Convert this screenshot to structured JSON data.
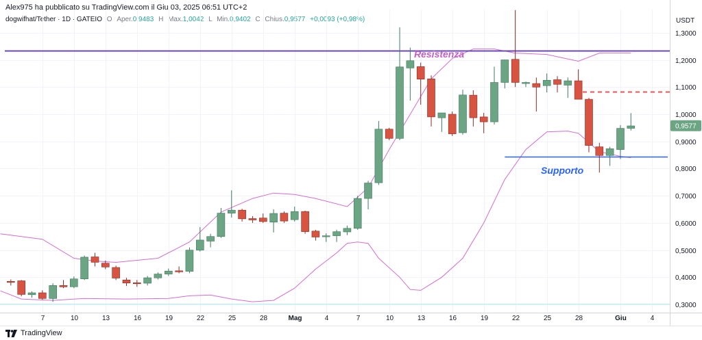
{
  "header": {
    "publisher": "Alex975 ha pubblicato su TradingView.com il Giu 03, 2025 06:51 UTC+2",
    "symbol": "dogwifhat/Tether · 1D · GATEIO",
    "open_label": "O",
    "open_text": "Aper.",
    "open_value": "0,9483",
    "high_label": "H",
    "high_text": "Max.",
    "high_value": "1,0042",
    "low_label": "L",
    "low_text": "Min.",
    "low_value": "0,9402",
    "close_label": "C",
    "close_text": "Chius.",
    "close_value": "0,9577",
    "change": "+0,0093 (+0,98%)"
  },
  "footer": {
    "brand": "TradingView",
    "logo_icon": "tradingview-logo-icon"
  },
  "colors": {
    "up": "#6ba583",
    "down": "#d75442",
    "band": "#d36cd0",
    "resistance": "#6a48b7",
    "support": "#2962ff",
    "last_price": "#6ba583",
    "dash": "#ef5350",
    "grid": "#f0f3fa"
  },
  "chart_data": {
    "type": "candlestick",
    "currency": "USDT",
    "ylim": [
      0.275,
      1.385
    ],
    "y_ticks": [
      "0,3000",
      "0,4000",
      "0,5000",
      "0,6000",
      "0,7000",
      "0,8000",
      "0,9000",
      "1,0000",
      "1,1000",
      "1,2000",
      "1,3000"
    ],
    "y_tick_values": [
      0.3,
      0.4,
      0.5,
      0.6,
      0.7,
      0.8,
      0.9,
      1.0,
      1.1,
      1.2,
      1.3
    ],
    "x_ticks": [
      "7",
      "10",
      "13",
      "16",
      "19",
      "22",
      "25",
      "28",
      "Mag",
      "4",
      "7",
      "10",
      "13",
      "16",
      "19",
      "22",
      "25",
      "28",
      "Giu",
      "4"
    ],
    "x_tick_index": [
      4,
      7,
      10,
      13,
      16,
      19,
      22,
      25,
      28,
      31,
      34,
      37,
      40,
      43,
      46,
      49,
      52,
      55,
      59,
      62
    ],
    "last_price_label": "0,9577",
    "last_price": 0.9577,
    "resistance": {
      "label": "Resistenza",
      "value": 1.233
    },
    "support": {
      "label": "Supporto",
      "value": 0.843,
      "from_index": 48
    },
    "pending_level": 1.082,
    "candles": [
      {
        "i": 1,
        "o": 0.385,
        "h": 0.392,
        "l": 0.37,
        "c": 0.384
      },
      {
        "i": 2,
        "o": 0.387,
        "h": 0.39,
        "l": 0.33,
        "c": 0.337
      },
      {
        "i": 3,
        "o": 0.336,
        "h": 0.348,
        "l": 0.325,
        "c": 0.343
      },
      {
        "i": 4,
        "o": 0.343,
        "h": 0.352,
        "l": 0.318,
        "c": 0.322
      },
      {
        "i": 5,
        "o": 0.322,
        "h": 0.378,
        "l": 0.31,
        "c": 0.37
      },
      {
        "i": 6,
        "o": 0.37,
        "h": 0.39,
        "l": 0.36,
        "c": 0.365
      },
      {
        "i": 7,
        "o": 0.365,
        "h": 0.403,
        "l": 0.36,
        "c": 0.394
      },
      {
        "i": 8,
        "o": 0.394,
        "h": 0.48,
        "l": 0.39,
        "c": 0.474
      },
      {
        "i": 9,
        "o": 0.475,
        "h": 0.49,
        "l": 0.44,
        "c": 0.455
      },
      {
        "i": 10,
        "o": 0.452,
        "h": 0.462,
        "l": 0.43,
        "c": 0.438
      },
      {
        "i": 11,
        "o": 0.436,
        "h": 0.443,
        "l": 0.39,
        "c": 0.397
      },
      {
        "i": 12,
        "o": 0.39,
        "h": 0.398,
        "l": 0.368,
        "c": 0.379
      },
      {
        "i": 13,
        "o": 0.38,
        "h": 0.39,
        "l": 0.365,
        "c": 0.378
      },
      {
        "i": 14,
        "o": 0.378,
        "h": 0.405,
        "l": 0.37,
        "c": 0.398
      },
      {
        "i": 15,
        "o": 0.398,
        "h": 0.418,
        "l": 0.392,
        "c": 0.412
      },
      {
        "i": 16,
        "o": 0.412,
        "h": 0.432,
        "l": 0.405,
        "c": 0.423
      },
      {
        "i": 17,
        "o": 0.424,
        "h": 0.44,
        "l": 0.415,
        "c": 0.42
      },
      {
        "i": 18,
        "o": 0.422,
        "h": 0.51,
        "l": 0.415,
        "c": 0.5
      },
      {
        "i": 19,
        "o": 0.5,
        "h": 0.585,
        "l": 0.495,
        "c": 0.537
      },
      {
        "i": 20,
        "o": 0.533,
        "h": 0.56,
        "l": 0.51,
        "c": 0.55
      },
      {
        "i": 21,
        "o": 0.55,
        "h": 0.655,
        "l": 0.545,
        "c": 0.636
      },
      {
        "i": 22,
        "o": 0.636,
        "h": 0.72,
        "l": 0.62,
        "c": 0.647
      },
      {
        "i": 23,
        "o": 0.647,
        "h": 0.652,
        "l": 0.605,
        "c": 0.615
      },
      {
        "i": 24,
        "o": 0.616,
        "h": 0.625,
        "l": 0.6,
        "c": 0.611
      },
      {
        "i": 25,
        "o": 0.618,
        "h": 0.635,
        "l": 0.6,
        "c": 0.605
      },
      {
        "i": 26,
        "o": 0.603,
        "h": 0.65,
        "l": 0.565,
        "c": 0.635
      },
      {
        "i": 27,
        "o": 0.636,
        "h": 0.643,
        "l": 0.6,
        "c": 0.607
      },
      {
        "i": 28,
        "o": 0.612,
        "h": 0.66,
        "l": 0.605,
        "c": 0.642
      },
      {
        "i": 29,
        "o": 0.642,
        "h": 0.645,
        "l": 0.56,
        "c": 0.568
      },
      {
        "i": 30,
        "o": 0.57,
        "h": 0.575,
        "l": 0.535,
        "c": 0.548
      },
      {
        "i": 31,
        "o": 0.55,
        "h": 0.562,
        "l": 0.53,
        "c": 0.553
      },
      {
        "i": 32,
        "o": 0.553,
        "h": 0.575,
        "l": 0.53,
        "c": 0.568
      },
      {
        "i": 33,
        "o": 0.567,
        "h": 0.59,
        "l": 0.555,
        "c": 0.58
      },
      {
        "i": 34,
        "o": 0.58,
        "h": 0.7,
        "l": 0.575,
        "c": 0.69
      },
      {
        "i": 35,
        "o": 0.69,
        "h": 0.755,
        "l": 0.65,
        "c": 0.747
      },
      {
        "i": 36,
        "o": 0.748,
        "h": 0.975,
        "l": 0.74,
        "c": 0.945
      },
      {
        "i": 37,
        "o": 0.945,
        "h": 0.95,
        "l": 0.905,
        "c": 0.911
      },
      {
        "i": 38,
        "o": 0.911,
        "h": 1.32,
        "l": 0.905,
        "c": 1.174
      },
      {
        "i": 39,
        "o": 1.17,
        "h": 1.245,
        "l": 1.05,
        "c": 1.197
      },
      {
        "i": 40,
        "o": 1.175,
        "h": 1.19,
        "l": 1.035,
        "c": 1.129
      },
      {
        "i": 41,
        "o": 1.13,
        "h": 1.143,
        "l": 0.955,
        "c": 0.99
      },
      {
        "i": 42,
        "o": 0.987,
        "h": 1.005,
        "l": 0.935,
        "c": 1.005
      },
      {
        "i": 43,
        "o": 1.0,
        "h": 1.01,
        "l": 0.92,
        "c": 0.928
      },
      {
        "i": 44,
        "o": 0.932,
        "h": 1.09,
        "l": 0.925,
        "c": 1.071
      },
      {
        "i": 45,
        "o": 1.07,
        "h": 1.088,
        "l": 0.955,
        "c": 0.987
      },
      {
        "i": 46,
        "o": 0.99,
        "h": 1.005,
        "l": 0.93,
        "c": 0.972
      },
      {
        "i": 47,
        "o": 0.972,
        "h": 1.175,
        "l": 0.962,
        "c": 1.117
      },
      {
        "i": 48,
        "o": 1.117,
        "h": 1.2,
        "l": 1.095,
        "c": 1.2
      },
      {
        "i": 49,
        "o": 1.202,
        "h": 1.383,
        "l": 1.1,
        "c": 1.117
      },
      {
        "i": 50,
        "o": 1.113,
        "h": 1.12,
        "l": 1.1,
        "c": 1.117
      },
      {
        "i": 51,
        "o": 1.113,
        "h": 1.135,
        "l": 1.01,
        "c": 1.1
      },
      {
        "i": 52,
        "o": 1.105,
        "h": 1.15,
        "l": 1.08,
        "c": 1.125
      },
      {
        "i": 53,
        "o": 1.127,
        "h": 1.14,
        "l": 1.08,
        "c": 1.11
      },
      {
        "i": 54,
        "o": 1.107,
        "h": 1.135,
        "l": 1.06,
        "c": 1.123
      },
      {
        "i": 55,
        "o": 1.123,
        "h": 1.165,
        "l": 1.055,
        "c": 1.055
      },
      {
        "i": 56,
        "o": 1.055,
        "h": 1.06,
        "l": 0.86,
        "c": 0.885
      },
      {
        "i": 57,
        "o": 0.88,
        "h": 0.895,
        "l": 0.785,
        "c": 0.848
      },
      {
        "i": 58,
        "o": 0.848,
        "h": 0.88,
        "l": 0.81,
        "c": 0.873
      },
      {
        "i": 59,
        "o": 0.87,
        "h": 0.96,
        "l": 0.835,
        "c": 0.948
      },
      {
        "i": 60,
        "o": 0.948,
        "h": 1.004,
        "l": 0.94,
        "c": 0.957
      }
    ],
    "upper_band": [
      [
        0,
        0.56
      ],
      [
        4,
        0.54
      ],
      [
        7,
        0.47
      ],
      [
        9,
        0.46
      ],
      [
        11,
        0.455
      ],
      [
        15,
        0.47
      ],
      [
        18,
        0.53
      ],
      [
        21,
        0.64
      ],
      [
        24,
        0.69
      ],
      [
        26,
        0.71
      ],
      [
        28,
        0.705
      ],
      [
        30,
        0.69
      ],
      [
        33,
        0.66
      ],
      [
        35,
        0.73
      ],
      [
        37,
        0.87
      ],
      [
        39,
        1.0
      ],
      [
        41,
        1.13
      ],
      [
        43,
        1.205
      ],
      [
        45,
        1.24
      ],
      [
        47,
        1.24
      ],
      [
        49,
        1.225
      ],
      [
        52,
        1.22
      ],
      [
        55,
        1.195
      ],
      [
        57,
        1.225
      ],
      [
        60,
        1.225
      ]
    ],
    "lower_band": [
      [
        0,
        0.35
      ],
      [
        2,
        0.32
      ],
      [
        5,
        0.315
      ],
      [
        8,
        0.322
      ],
      [
        12,
        0.32
      ],
      [
        16,
        0.322
      ],
      [
        18,
        0.332
      ],
      [
        20,
        0.335
      ],
      [
        22,
        0.32
      ],
      [
        24,
        0.31
      ],
      [
        26,
        0.315
      ],
      [
        28,
        0.36
      ],
      [
        30,
        0.43
      ],
      [
        32,
        0.49
      ],
      [
        33,
        0.525
      ],
      [
        34,
        0.53
      ],
      [
        35,
        0.525
      ],
      [
        36,
        0.47
      ],
      [
        38,
        0.4
      ],
      [
        39,
        0.355
      ],
      [
        40,
        0.352
      ],
      [
        42,
        0.4
      ],
      [
        44,
        0.47
      ],
      [
        46,
        0.6
      ],
      [
        48,
        0.76
      ],
      [
        50,
        0.87
      ],
      [
        52,
        0.935
      ],
      [
        54,
        0.938
      ],
      [
        55,
        0.93
      ],
      [
        57,
        0.862
      ],
      [
        59,
        0.845
      ],
      [
        60,
        0.84
      ]
    ]
  }
}
